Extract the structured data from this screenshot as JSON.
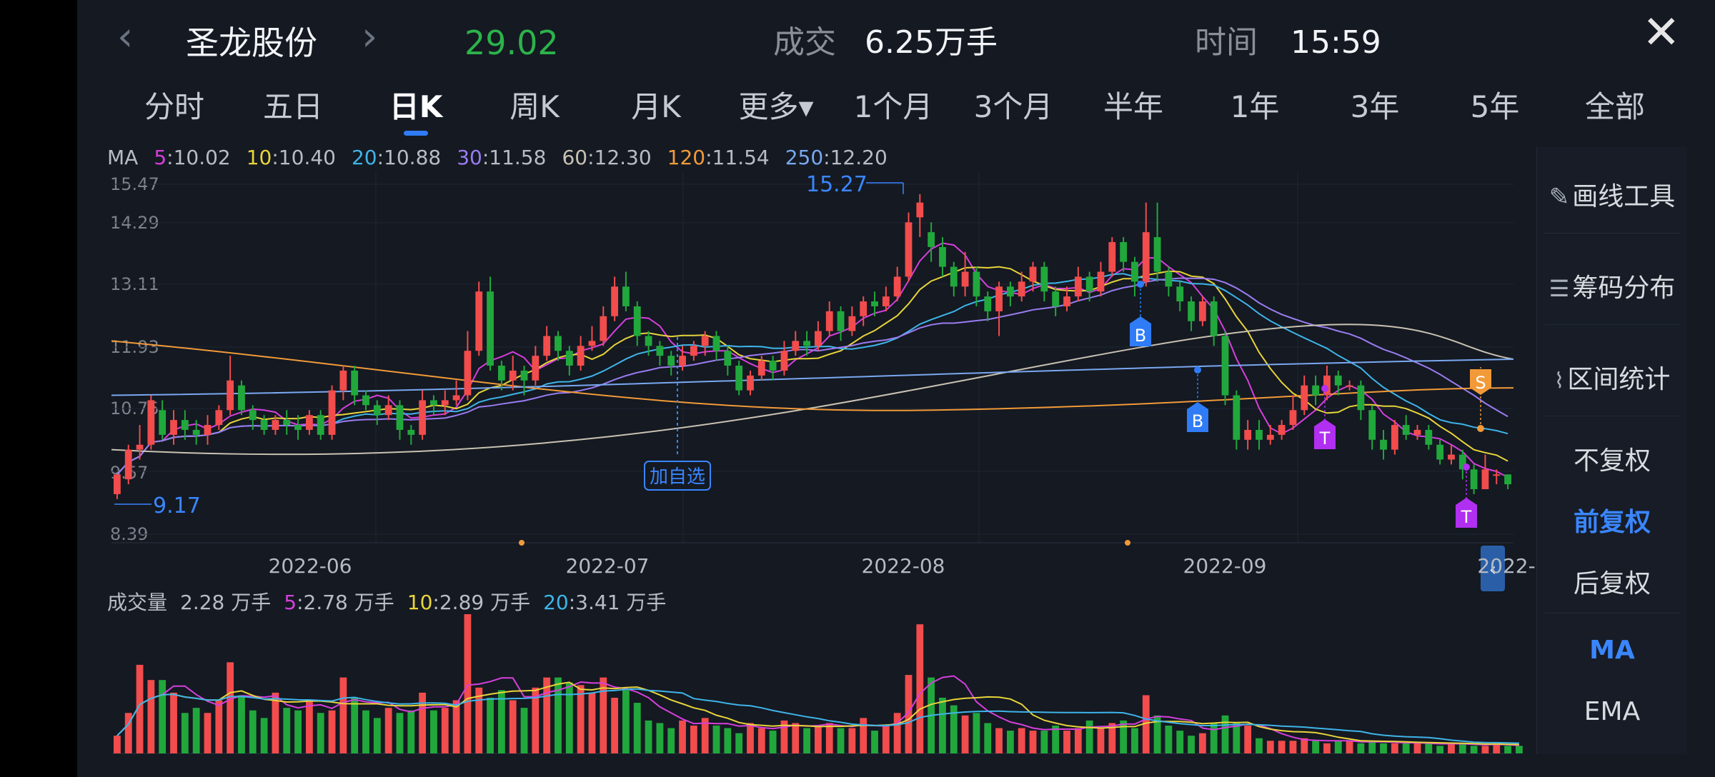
{
  "header": {
    "prev_icon": "chevron-left-icon",
    "stock_name": "圣龙股份",
    "next_icon": "chevron-right-icon",
    "price": "29.02",
    "volume_label": "成交",
    "volume_value": "6.25万手",
    "time_label": "时间",
    "time_value": "15:59",
    "close_icon": "close-icon",
    "price_color": "#2cb34a"
  },
  "period_tabs": [
    {
      "label": "分时"
    },
    {
      "label": "五日"
    },
    {
      "label": "日K",
      "active": true
    },
    {
      "label": "周K"
    },
    {
      "label": "月K"
    },
    {
      "label": "更多▾"
    },
    {
      "label": "1个月"
    },
    {
      "label": "3个月"
    },
    {
      "label": "半年"
    },
    {
      "label": "1年"
    },
    {
      "label": "3年"
    },
    {
      "label": "5年"
    },
    {
      "label": "全部"
    }
  ],
  "ma_legend": {
    "prefix": "MA",
    "items": [
      {
        "period": "5",
        "value": ":10.02",
        "color": "#d63fdc"
      },
      {
        "period": "10",
        "value": ":10.40",
        "color": "#e8d43a"
      },
      {
        "period": "20",
        "value": ":10.88",
        "color": "#3fb4e8"
      },
      {
        "period": "30",
        "value": ":11.58",
        "color": "#9a7cf0"
      },
      {
        "period": "60",
        "value": ":12.30",
        "color": "#c9c2b2"
      },
      {
        "period": "120",
        "value": ":11.54",
        "color": "#f29a38"
      },
      {
        "period": "250",
        "value": ":12.20",
        "color": "#7aa8f0"
      }
    ]
  },
  "price_axis": [
    "15.47",
    "14.29",
    "13.11",
    "11.93",
    "10.75",
    "9.57",
    "8.39"
  ],
  "date_axis": [
    "2022-06",
    "2022-07",
    "2022-08",
    "2022-09",
    "2022-"
  ],
  "annotations": {
    "high_label": "15.27",
    "low_label": "9.17",
    "watchlist_tag": "加自选",
    "buy_marker": "B",
    "t_marker": "T",
    "sell_marker": "S"
  },
  "volume_legend": {
    "label": "成交量",
    "value": "2.28 万手",
    "items": [
      {
        "period": "5",
        "value": ":2.78 万手",
        "color": "#d63fdc"
      },
      {
        "period": "10",
        "value": ":2.89 万手",
        "color": "#e8d43a"
      },
      {
        "period": "20",
        "value": ":3.41 万手",
        "color": "#3fb4e8"
      }
    ]
  },
  "sidebar": {
    "draw_tool": "画线工具",
    "chip_distribution": "筹码分布",
    "range_stats": "区间统计",
    "no_adjust": "不复权",
    "forward_adjust": "前复权",
    "backward_adjust": "后复权",
    "ma": "MA",
    "ema": "EMA",
    "draw_icon": "pen-icon",
    "chip_icon": "list-lines-icon",
    "range_icon": "range-chart-icon"
  },
  "chart_data": {
    "type": "candlestick",
    "y_range": [
      8.39,
      15.47
    ],
    "colors": {
      "up": "#f24c4c",
      "down": "#21a83c"
    },
    "candles": [
      [
        9.2,
        9.6,
        9.6,
        9.1
      ],
      [
        9.5,
        10.1,
        10.2,
        9.4
      ],
      [
        10.1,
        10.2,
        10.6,
        9.9
      ],
      [
        10.2,
        11.1,
        11.2,
        10.1
      ],
      [
        10.9,
        10.4,
        11.1,
        10.3
      ],
      [
        10.4,
        10.7,
        10.9,
        10.2
      ],
      [
        10.7,
        10.5,
        10.9,
        10.3
      ],
      [
        10.5,
        10.4,
        10.7,
        10.2
      ],
      [
        10.4,
        10.6,
        10.8,
        10.2
      ],
      [
        10.6,
        10.9,
        11.0,
        10.5
      ],
      [
        10.9,
        11.5,
        12.0,
        10.8
      ],
      [
        11.4,
        10.9,
        11.5,
        10.8
      ],
      [
        10.9,
        10.7,
        11.0,
        10.5
      ],
      [
        10.7,
        10.5,
        10.8,
        10.4
      ],
      [
        10.5,
        10.7,
        10.8,
        10.4
      ],
      [
        10.7,
        10.6,
        10.9,
        10.4
      ],
      [
        10.6,
        10.5,
        10.8,
        10.3
      ],
      [
        10.5,
        10.8,
        10.9,
        10.4
      ],
      [
        10.8,
        10.4,
        10.9,
        10.3
      ],
      [
        10.4,
        11.3,
        11.4,
        10.3
      ],
      [
        11.3,
        11.7,
        11.8,
        11.1
      ],
      [
        11.7,
        11.2,
        11.8,
        11.0
      ],
      [
        11.2,
        11.0,
        11.3,
        10.9
      ],
      [
        11.0,
        10.8,
        11.1,
        10.6
      ],
      [
        10.8,
        11.0,
        11.2,
        10.7
      ],
      [
        11.0,
        10.5,
        11.1,
        10.3
      ],
      [
        10.5,
        10.4,
        10.6,
        10.2
      ],
      [
        10.4,
        11.1,
        11.3,
        10.3
      ],
      [
        11.1,
        11.0,
        11.2,
        10.8
      ],
      [
        11.0,
        11.1,
        11.3,
        10.8
      ],
      [
        11.1,
        11.2,
        11.5,
        11.0
      ],
      [
        11.2,
        12.1,
        12.5,
        11.1
      ],
      [
        12.1,
        13.3,
        13.5,
        12.0
      ],
      [
        13.3,
        11.8,
        13.6,
        11.7
      ],
      [
        11.8,
        11.5,
        11.9,
        11.3
      ],
      [
        11.5,
        11.7,
        12.0,
        11.3
      ],
      [
        11.7,
        11.5,
        11.8,
        11.2
      ],
      [
        11.5,
        12.0,
        12.2,
        11.4
      ],
      [
        12.0,
        12.4,
        12.6,
        11.9
      ],
      [
        12.4,
        12.1,
        12.5,
        11.9
      ],
      [
        12.1,
        11.8,
        12.2,
        11.6
      ],
      [
        11.8,
        12.2,
        12.4,
        11.7
      ],
      [
        12.2,
        12.3,
        12.6,
        12.1
      ],
      [
        12.3,
        12.8,
        13.0,
        12.2
      ],
      [
        12.8,
        13.4,
        13.6,
        12.7
      ],
      [
        13.4,
        13.0,
        13.7,
        12.9
      ],
      [
        13.0,
        12.4,
        13.1,
        12.2
      ],
      [
        12.4,
        12.2,
        12.5,
        12.0
      ],
      [
        12.2,
        12.0,
        12.3,
        11.8
      ],
      [
        12.0,
        11.8,
        12.1,
        11.6
      ],
      [
        11.8,
        12.0,
        12.2,
        11.7
      ],
      [
        12.0,
        12.2,
        12.3,
        11.9
      ],
      [
        12.2,
        12.4,
        12.5,
        12.0
      ],
      [
        12.4,
        12.1,
        12.5,
        11.9
      ],
      [
        12.1,
        11.8,
        12.2,
        11.6
      ],
      [
        11.8,
        11.3,
        11.9,
        11.2
      ],
      [
        11.3,
        11.6,
        11.7,
        11.2
      ],
      [
        11.6,
        11.9,
        12.0,
        11.5
      ],
      [
        11.9,
        11.7,
        12.0,
        11.5
      ],
      [
        11.7,
        12.1,
        12.3,
        11.6
      ],
      [
        12.1,
        12.3,
        12.5,
        12.0
      ],
      [
        12.3,
        12.2,
        12.5,
        12.0
      ],
      [
        12.2,
        12.5,
        12.7,
        12.1
      ],
      [
        12.5,
        12.9,
        13.1,
        12.4
      ],
      [
        12.9,
        12.5,
        13.0,
        12.3
      ],
      [
        12.5,
        12.8,
        13.0,
        12.4
      ],
      [
        12.8,
        13.1,
        13.2,
        12.6
      ],
      [
        13.1,
        13.0,
        13.3,
        12.8
      ],
      [
        13.0,
        13.2,
        13.4,
        12.9
      ],
      [
        13.2,
        13.6,
        13.8,
        13.1
      ],
      [
        13.6,
        14.7,
        14.9,
        13.5
      ],
      [
        14.8,
        15.1,
        15.27,
        14.4
      ],
      [
        14.5,
        14.2,
        14.7,
        13.9
      ],
      [
        14.2,
        13.8,
        14.4,
        13.6
      ],
      [
        13.8,
        13.4,
        13.9,
        13.2
      ],
      [
        13.4,
        13.7,
        14.1,
        13.2
      ],
      [
        13.7,
        13.2,
        13.8,
        13.0
      ],
      [
        13.2,
        12.9,
        13.3,
        12.7
      ],
      [
        12.9,
        13.4,
        13.5,
        12.4
      ],
      [
        13.4,
        13.2,
        13.5,
        13.0
      ],
      [
        13.2,
        13.5,
        13.7,
        13.1
      ],
      [
        13.5,
        13.8,
        13.9,
        13.3
      ],
      [
        13.8,
        13.3,
        13.9,
        13.1
      ],
      [
        13.3,
        13.0,
        13.4,
        12.8
      ],
      [
        13.0,
        13.2,
        13.4,
        12.9
      ],
      [
        13.2,
        13.6,
        13.8,
        13.1
      ],
      [
        13.6,
        13.3,
        13.7,
        13.1
      ],
      [
        13.3,
        13.7,
        13.9,
        13.2
      ],
      [
        13.7,
        14.3,
        14.4,
        13.6
      ],
      [
        14.3,
        13.9,
        14.4,
        13.7
      ],
      [
        13.9,
        13.5,
        14.0,
        13.2
      ],
      [
        13.5,
        14.5,
        15.1,
        13.4
      ],
      [
        14.4,
        13.7,
        15.1,
        13.5
      ],
      [
        13.7,
        13.4,
        13.8,
        13.2
      ],
      [
        13.4,
        13.1,
        13.5,
        12.9
      ],
      [
        13.1,
        12.7,
        13.2,
        12.5
      ],
      [
        12.7,
        13.1,
        13.2,
        12.6
      ],
      [
        13.1,
        12.4,
        13.2,
        12.2
      ],
      [
        12.4,
        11.2,
        12.5,
        11.0
      ],
      [
        11.2,
        10.3,
        11.3,
        10.1
      ],
      [
        10.3,
        10.5,
        10.7,
        10.1
      ],
      [
        10.5,
        10.3,
        10.7,
        10.1
      ],
      [
        10.3,
        10.4,
        10.6,
        10.2
      ],
      [
        10.4,
        10.6,
        10.7,
        10.3
      ],
      [
        10.6,
        10.9,
        11.2,
        10.5
      ],
      [
        10.9,
        11.4,
        11.6,
        10.8
      ],
      [
        11.4,
        11.2,
        11.6,
        11.0
      ],
      [
        11.2,
        11.6,
        11.8,
        11.1
      ],
      [
        11.6,
        11.4,
        11.7,
        11.2
      ],
      [
        11.4,
        11.4,
        11.5,
        11.3
      ],
      [
        11.4,
        10.9,
        11.5,
        10.7
      ],
      [
        10.9,
        10.3,
        11.0,
        10.1
      ],
      [
        10.3,
        10.1,
        10.5,
        9.9
      ],
      [
        10.1,
        10.6,
        10.7,
        10.0
      ],
      [
        10.6,
        10.4,
        10.8,
        10.3
      ],
      [
        10.4,
        10.5,
        10.6,
        10.3
      ],
      [
        10.5,
        10.2,
        10.6,
        10.1
      ],
      [
        10.2,
        9.9,
        10.3,
        9.8
      ],
      [
        9.9,
        10.0,
        10.2,
        9.8
      ],
      [
        10.0,
        9.7,
        10.1,
        9.5
      ],
      [
        9.7,
        9.3,
        9.8,
        9.2
      ],
      [
        9.3,
        9.7,
        10.0,
        9.3
      ],
      [
        9.6,
        9.6,
        9.7,
        9.4
      ],
      [
        9.6,
        9.4,
        9.6,
        9.3
      ]
    ],
    "volume_bars": [
      0.7,
      1.6,
      3.5,
      2.9,
      2.9,
      2.4,
      1.6,
      1.8,
      1.6,
      2.1,
      3.6,
      2.3,
      1.7,
      1.4,
      2.4,
      1.8,
      1.7,
      2.1,
      1.6,
      1.7,
      3.0,
      2.2,
      1.7,
      1.4,
      1.8,
      1.6,
      1.7,
      2.4,
      1.7,
      1.8,
      2.1,
      5.5,
      2.6,
      2.2,
      2.5,
      2.1,
      1.8,
      2.6,
      3.0,
      3.0,
      2.8,
      2.7,
      2.4,
      3.0,
      2.2,
      2.5,
      2.0,
      1.3,
      1.2,
      1.0,
      1.3,
      1.1,
      1.4,
      1.1,
      1.0,
      0.8,
      1.2,
      1.0,
      0.9,
      1.3,
      1.2,
      1.0,
      1.1,
      1.2,
      1.0,
      1.0,
      1.4,
      0.9,
      1.1,
      1.6,
      3.1,
      5.1,
      3.0,
      2.2,
      1.9,
      1.5,
      1.6,
      1.2,
      1.0,
      0.9,
      1.0,
      0.9,
      0.9,
      1.1,
      0.9,
      1.0,
      1.3,
      1.0,
      1.2,
      1.3,
      1.0,
      2.3,
      1.5,
      1.1,
      0.9,
      0.7,
      0.8,
      1.2,
      1.5,
      1.2,
      1.1,
      0.6,
      0.5,
      0.5,
      0.5,
      0.6,
      0.5,
      0.4,
      0.5,
      0.5,
      0.4,
      0.5,
      0.4,
      0.4,
      0.4,
      0.4,
      0.4,
      0.3,
      0.4,
      0.4,
      0.3,
      0.3,
      0.4,
      0.3,
      0.3
    ],
    "volume_max": 5.5
  }
}
